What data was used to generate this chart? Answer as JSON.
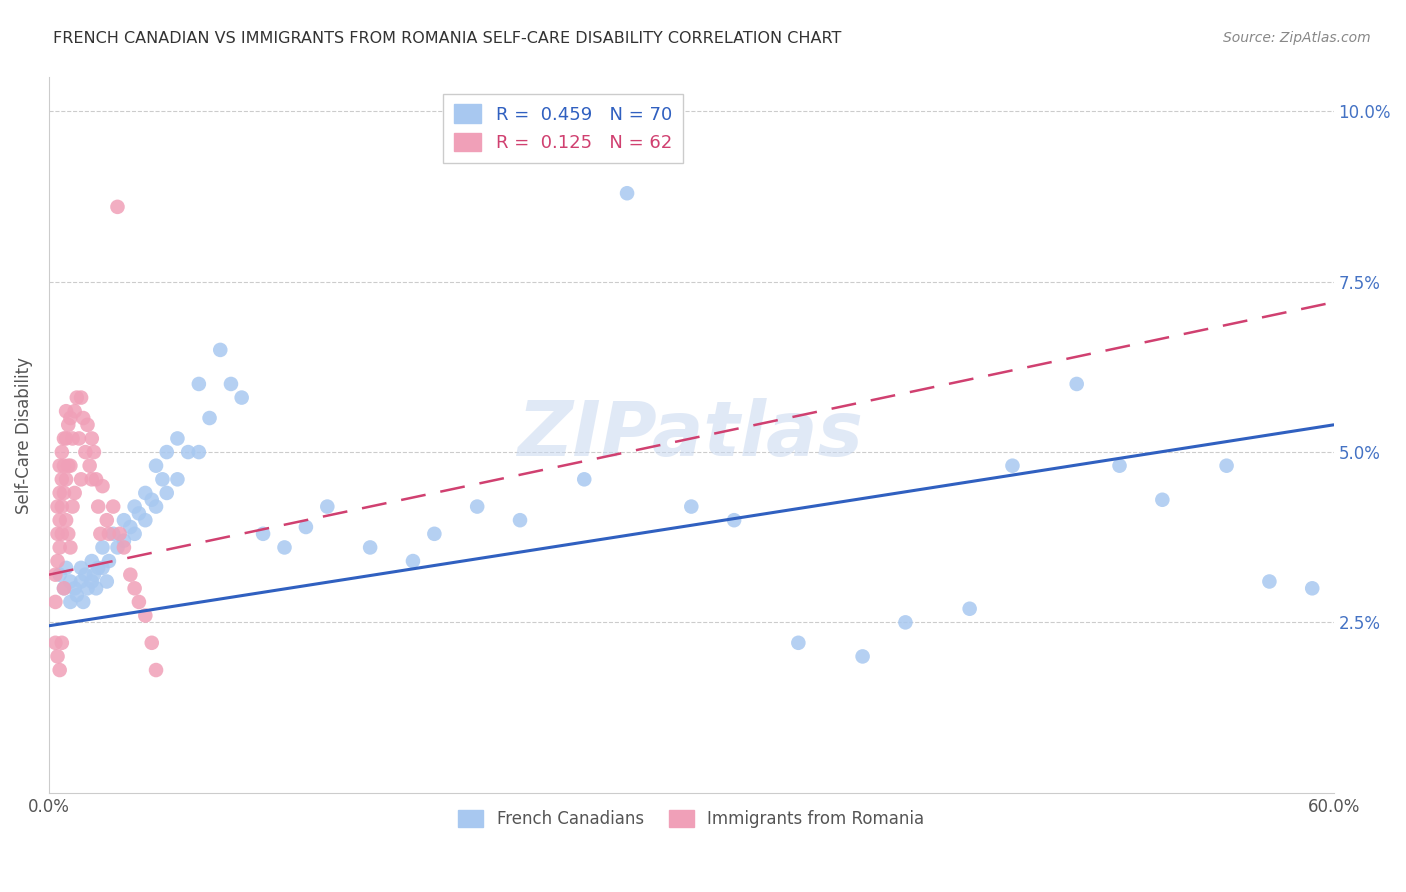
{
  "title": "FRENCH CANADIAN VS IMMIGRANTS FROM ROMANIA SELF-CARE DISABILITY CORRELATION CHART",
  "source": "Source: ZipAtlas.com",
  "ylabel": "Self-Care Disability",
  "xlim": [
    0.0,
    0.6
  ],
  "ylim": [
    0.0,
    0.105
  ],
  "ytick_positions": [
    0.0,
    0.025,
    0.05,
    0.075,
    0.1
  ],
  "ytick_labels": [
    "",
    "2.5%",
    "5.0%",
    "7.5%",
    "10.0%"
  ],
  "xtick_positions": [
    0.0,
    0.1,
    0.2,
    0.3,
    0.4,
    0.5,
    0.6
  ],
  "xtick_labels": [
    "0.0%",
    "",
    "",
    "",
    "",
    "",
    "60.0%"
  ],
  "watermark": "ZIPatlas",
  "blue_R": 0.459,
  "blue_N": 70,
  "pink_R": 0.125,
  "pink_N": 62,
  "blue_color": "#A8C8F0",
  "pink_color": "#F0A0B8",
  "blue_line_color": "#3060C0",
  "pink_line_color": "#D04070",
  "grid_color": "#CCCCCC",
  "blue_line_x0": 0.0,
  "blue_line_y0": 0.0245,
  "blue_line_x1": 0.6,
  "blue_line_y1": 0.054,
  "pink_line_x0": 0.0,
  "pink_line_y0": 0.032,
  "pink_line_x1": 0.6,
  "pink_line_y1": 0.072,
  "blue_x": [
    0.005,
    0.007,
    0.008,
    0.01,
    0.01,
    0.012,
    0.013,
    0.015,
    0.015,
    0.016,
    0.017,
    0.018,
    0.02,
    0.02,
    0.021,
    0.022,
    0.023,
    0.025,
    0.025,
    0.027,
    0.028,
    0.03,
    0.032,
    0.035,
    0.035,
    0.038,
    0.04,
    0.04,
    0.042,
    0.045,
    0.045,
    0.048,
    0.05,
    0.05,
    0.053,
    0.055,
    0.055,
    0.06,
    0.06,
    0.065,
    0.07,
    0.07,
    0.075,
    0.08,
    0.085,
    0.09,
    0.1,
    0.11,
    0.12,
    0.13,
    0.15,
    0.17,
    0.18,
    0.2,
    0.22,
    0.25,
    0.27,
    0.3,
    0.32,
    0.35,
    0.38,
    0.4,
    0.43,
    0.45,
    0.48,
    0.5,
    0.52,
    0.55,
    0.57,
    0.59
  ],
  "blue_y": [
    0.032,
    0.03,
    0.033,
    0.028,
    0.031,
    0.03,
    0.029,
    0.033,
    0.031,
    0.028,
    0.032,
    0.03,
    0.034,
    0.031,
    0.032,
    0.03,
    0.033,
    0.036,
    0.033,
    0.031,
    0.034,
    0.038,
    0.036,
    0.04,
    0.037,
    0.039,
    0.042,
    0.038,
    0.041,
    0.044,
    0.04,
    0.043,
    0.048,
    0.042,
    0.046,
    0.05,
    0.044,
    0.052,
    0.046,
    0.05,
    0.06,
    0.05,
    0.055,
    0.065,
    0.06,
    0.058,
    0.038,
    0.036,
    0.039,
    0.042,
    0.036,
    0.034,
    0.038,
    0.042,
    0.04,
    0.046,
    0.088,
    0.042,
    0.04,
    0.022,
    0.02,
    0.025,
    0.027,
    0.048,
    0.06,
    0.048,
    0.043,
    0.048,
    0.031,
    0.03
  ],
  "pink_x": [
    0.003,
    0.003,
    0.003,
    0.004,
    0.004,
    0.004,
    0.004,
    0.005,
    0.005,
    0.005,
    0.005,
    0.005,
    0.006,
    0.006,
    0.006,
    0.006,
    0.006,
    0.007,
    0.007,
    0.007,
    0.007,
    0.008,
    0.008,
    0.008,
    0.008,
    0.009,
    0.009,
    0.009,
    0.01,
    0.01,
    0.01,
    0.011,
    0.011,
    0.012,
    0.012,
    0.013,
    0.014,
    0.015,
    0.015,
    0.016,
    0.017,
    0.018,
    0.019,
    0.02,
    0.02,
    0.021,
    0.022,
    0.023,
    0.024,
    0.025,
    0.027,
    0.028,
    0.03,
    0.032,
    0.033,
    0.035,
    0.038,
    0.04,
    0.042,
    0.045,
    0.048,
    0.05
  ],
  "pink_y": [
    0.032,
    0.028,
    0.022,
    0.042,
    0.038,
    0.034,
    0.02,
    0.048,
    0.044,
    0.04,
    0.036,
    0.018,
    0.05,
    0.046,
    0.042,
    0.038,
    0.022,
    0.052,
    0.048,
    0.044,
    0.03,
    0.056,
    0.052,
    0.046,
    0.04,
    0.054,
    0.048,
    0.038,
    0.055,
    0.048,
    0.036,
    0.052,
    0.042,
    0.056,
    0.044,
    0.058,
    0.052,
    0.058,
    0.046,
    0.055,
    0.05,
    0.054,
    0.048,
    0.052,
    0.046,
    0.05,
    0.046,
    0.042,
    0.038,
    0.045,
    0.04,
    0.038,
    0.042,
    0.086,
    0.038,
    0.036,
    0.032,
    0.03,
    0.028,
    0.026,
    0.022,
    0.018
  ]
}
